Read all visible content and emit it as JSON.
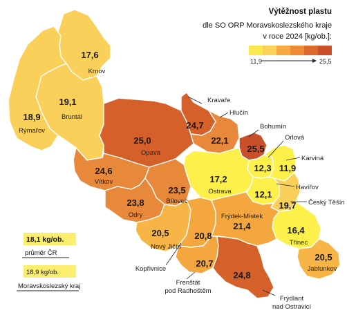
{
  "legend": {
    "title": "Výtěžnost plastu",
    "subtitle_1": "dle SO ORP Moravskoslezského kraje",
    "subtitle_2": "v roce 2024 [kg/ob.]:",
    "min": "11,9",
    "max": "25,5",
    "colors": [
      "#fbe74e",
      "#fcd15a",
      "#f8a941",
      "#ed8c34",
      "#db6a2c",
      "#c9502a"
    ]
  },
  "reference": {
    "cr_value": "18,1 kg/ob.",
    "cr_label": "průměr ČR",
    "kraj_value": "18,9 kg/ob.",
    "kraj_label": "Moravskoslezský kraj",
    "box_color": "#fbee6e"
  },
  "regions": [
    {
      "id": "krnov",
      "name": "Krnov",
      "value": "17,6",
      "color": "#fbd05a"
    },
    {
      "id": "bruntal",
      "name": "Bruntál",
      "value": "19,1",
      "color": "#fbd05a"
    },
    {
      "id": "rymarov",
      "name": "Rýmařov",
      "value": "18,9",
      "color": "#fbd05a"
    },
    {
      "id": "opava",
      "name": "Opava",
      "value": "25,0",
      "color": "#d5602a"
    },
    {
      "id": "kravare",
      "name": "Kravaře",
      "value": "24,7",
      "color": "#d5602a"
    },
    {
      "id": "hlucin",
      "name": "Hlučín",
      "value": "22,1",
      "color": "#e8883a"
    },
    {
      "id": "bohumin",
      "name": "Bohumín",
      "value": "25,5",
      "color": "#c8502a"
    },
    {
      "id": "orlova",
      "name": "Orlová",
      "value": "12,3",
      "color": "#fdf04a"
    },
    {
      "id": "karvina",
      "name": "Karviná",
      "value": "11,9",
      "color": "#fdf04a"
    },
    {
      "id": "ostrava",
      "name": "Ostrava",
      "value": "17,2",
      "color": "#fdf04a"
    },
    {
      "id": "havirov",
      "name": "Havířov",
      "value": "12,1",
      "color": "#fdf04a"
    },
    {
      "id": "cesky_tesin",
      "name": "Český Těšín",
      "value": "19,7",
      "color": "#fbd05a"
    },
    {
      "id": "trinec",
      "name": "Třinec",
      "value": "16,4",
      "color": "#fdf04a"
    },
    {
      "id": "jablunkov",
      "name": "Jablunkov",
      "value": "20,5",
      "color": "#f7b447"
    },
    {
      "id": "vitkov",
      "name": "Vítkov",
      "value": "24,6",
      "color": "#e8883a"
    },
    {
      "id": "bilovec",
      "name": "Bílovec",
      "value": "23,5",
      "color": "#e8883a"
    },
    {
      "id": "odry",
      "name": "Odry",
      "value": "23,8",
      "color": "#e8883a"
    },
    {
      "id": "novy_jicin",
      "name": "Nový Jičín",
      "value": "20,5",
      "color": "#f7b447"
    },
    {
      "id": "koprivnice",
      "name": "Kopřivnice",
      "value": "20,8",
      "color": "#f4a63f"
    },
    {
      "id": "frydek",
      "name": "Frýdek-Místek",
      "value": "21,4",
      "color": "#f4a63f"
    },
    {
      "id": "frenstat",
      "name": "Frenštát pod Radhoštěm",
      "name_1": "Frenštát",
      "name_2": "pod Radhoštěm",
      "value": "20,7",
      "color": "#f4a63f"
    },
    {
      "id": "frydlant",
      "name": "Frýdlant nad Ostravicí",
      "name_1": "Frýdlant",
      "name_2": "nad Ostravicí",
      "value": "24,8",
      "color": "#d5602a"
    }
  ]
}
